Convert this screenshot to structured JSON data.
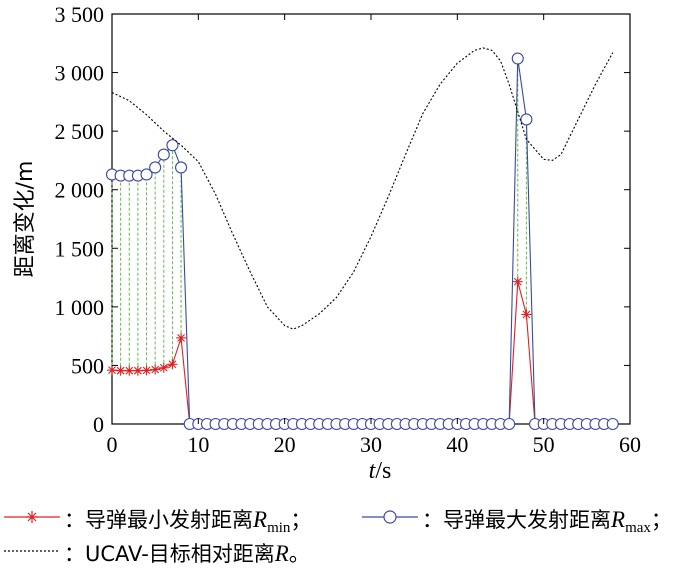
{
  "chart_data": {
    "type": "line",
    "xlabel": "t/s",
    "xlabel_italic": "t",
    "xlabel_unit": "/s",
    "ylabel": "距离变化/m",
    "xlim": [
      0,
      60
    ],
    "ylim": [
      0,
      3500
    ],
    "xticks": [
      0,
      10,
      20,
      30,
      40,
      50,
      60
    ],
    "yticks": [
      0,
      500,
      1000,
      1500,
      2000,
      2500,
      3000,
      3500
    ],
    "ytick_labels": [
      "0",
      "500",
      "1 000",
      "1 500",
      "2 000",
      "2 500",
      "3 000",
      "3 500"
    ],
    "grid": false,
    "legend_position": "bottom",
    "series": [
      {
        "name": "导弹最小发射距离R_min",
        "color": "#e02020",
        "marker": "asterisk",
        "x": [
          0,
          1,
          2,
          3,
          4,
          5,
          6,
          7,
          8,
          9,
          10,
          11,
          12,
          13,
          14,
          15,
          16,
          17,
          18,
          19,
          20,
          21,
          22,
          23,
          24,
          25,
          26,
          27,
          28,
          29,
          30,
          31,
          32,
          33,
          34,
          35,
          36,
          37,
          38,
          39,
          40,
          41,
          42,
          43,
          44,
          45,
          46,
          47,
          48,
          49,
          50,
          51,
          52,
          53,
          54,
          55,
          56,
          57,
          58
        ],
        "y": [
          460,
          455,
          455,
          455,
          458,
          465,
          480,
          510,
          735,
          0,
          0,
          0,
          0,
          0,
          0,
          0,
          0,
          0,
          0,
          0,
          0,
          0,
          0,
          0,
          0,
          0,
          0,
          0,
          0,
          0,
          0,
          0,
          0,
          0,
          0,
          0,
          0,
          0,
          0,
          0,
          0,
          0,
          0,
          0,
          0,
          0,
          0,
          1215,
          935,
          0,
          0,
          0,
          0,
          0,
          0,
          0,
          0,
          0,
          0
        ]
      },
      {
        "name": "导弹最大发射距离R_max",
        "color": "#3a4aa0",
        "marker": "circle",
        "x": [
          0,
          1,
          2,
          3,
          4,
          5,
          6,
          7,
          8,
          9,
          10,
          11,
          12,
          13,
          14,
          15,
          16,
          17,
          18,
          19,
          20,
          21,
          22,
          23,
          24,
          25,
          26,
          27,
          28,
          29,
          30,
          31,
          32,
          33,
          34,
          35,
          36,
          37,
          38,
          39,
          40,
          41,
          42,
          43,
          44,
          45,
          46,
          47,
          48,
          49,
          50,
          51,
          52,
          53,
          54,
          55,
          56,
          57,
          58
        ],
        "y": [
          2130,
          2120,
          2120,
          2120,
          2130,
          2190,
          2300,
          2380,
          2190,
          0,
          0,
          0,
          0,
          0,
          0,
          0,
          0,
          0,
          0,
          0,
          0,
          0,
          0,
          0,
          0,
          0,
          0,
          0,
          0,
          0,
          0,
          0,
          0,
          0,
          0,
          0,
          0,
          0,
          0,
          0,
          0,
          0,
          0,
          0,
          0,
          0,
          0,
          3120,
          2600,
          0,
          0,
          0,
          0,
          0,
          0,
          0,
          0,
          0,
          0
        ]
      },
      {
        "name": "UCAV-目标相对距离R",
        "color": "#000000",
        "marker": "none",
        "style": "dotted",
        "x": [
          0,
          2,
          4,
          6,
          8,
          10,
          12,
          14,
          16,
          18,
          20,
          21,
          22,
          24,
          26,
          28,
          30,
          32,
          34,
          36,
          38,
          40,
          42,
          43,
          44,
          45,
          46,
          48,
          50,
          51,
          52,
          54,
          56,
          58
        ],
        "y": [
          2830,
          2760,
          2640,
          2500,
          2380,
          2240,
          1960,
          1620,
          1300,
          1000,
          840,
          810,
          840,
          940,
          1080,
          1300,
          1600,
          1940,
          2300,
          2650,
          2900,
          3080,
          3190,
          3210,
          3190,
          3100,
          2900,
          2430,
          2260,
          2250,
          2300,
          2600,
          2900,
          3170
        ]
      }
    ],
    "legend": {
      "min_prefix": "：导弹最小发射距离",
      "min_var": "R",
      "min_sub": "min",
      "min_sep": "；",
      "max_prefix": "：导弹最大发射距离",
      "max_var": "R",
      "max_sub": "max",
      "max_sep": "；",
      "ucav_prefix": "：UCAV-目标相对距离",
      "ucav_var": "R",
      "ucav_end": "。"
    }
  }
}
